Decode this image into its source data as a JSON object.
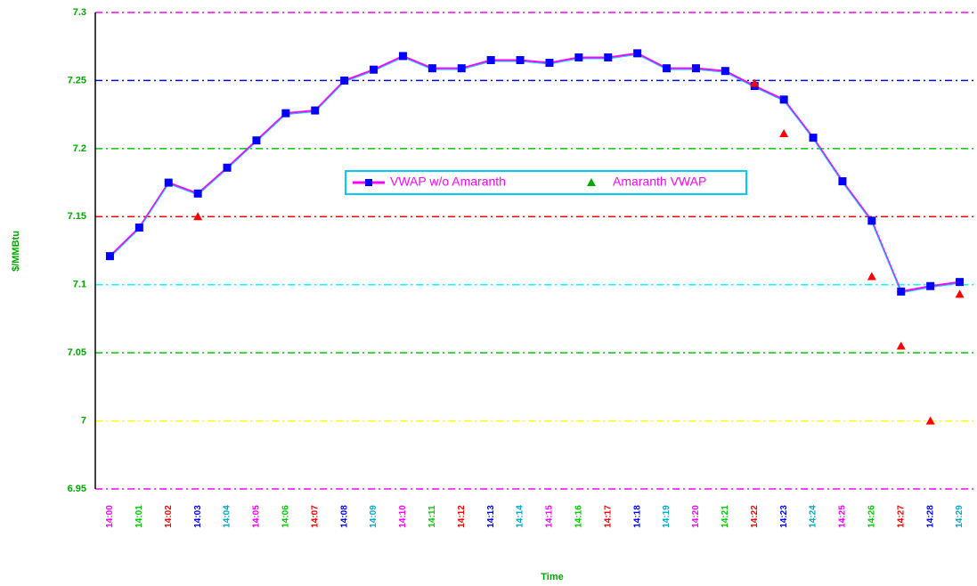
{
  "chart_data": {
    "type": "line",
    "x_label": "Time",
    "y_label": "$/MMBtu",
    "categories": [
      "14:00",
      "14:01",
      "14:02",
      "14:03",
      "14:04",
      "14:05",
      "14:06",
      "14:07",
      "14:08",
      "14:09",
      "14:10",
      "14:11",
      "14:12",
      "14:13",
      "14:14",
      "14:15",
      "14:16",
      "14:17",
      "14:18",
      "14:19",
      "14:20",
      "14:21",
      "14:22",
      "14:23",
      "14:24",
      "14:25",
      "14:26",
      "14:27",
      "14:28",
      "14:29"
    ],
    "series": [
      {
        "name": "VWAP w/o Amaranth",
        "color": "#ff00ff",
        "marker_color": "#0000ff",
        "marker": "square",
        "values": [
          7.121,
          7.142,
          7.175,
          7.167,
          7.186,
          7.206,
          7.226,
          7.228,
          7.25,
          7.258,
          7.268,
          7.259,
          7.259,
          7.265,
          7.265,
          7.263,
          7.267,
          7.267,
          7.27,
          7.259,
          7.259,
          7.257,
          7.246,
          7.236,
          7.208,
          7.176,
          7.147,
          7.095,
          7.099,
          7.102
        ]
      },
      {
        "name": "Amaranth VWAP",
        "color": "#ff0000",
        "marker_color": "#ff0000",
        "marker": "triangle",
        "line": false,
        "values": [
          null,
          null,
          null,
          7.15,
          null,
          null,
          null,
          null,
          null,
          null,
          null,
          null,
          null,
          null,
          null,
          null,
          null,
          null,
          null,
          null,
          null,
          null,
          7.248,
          7.211,
          null,
          null,
          7.106,
          7.055,
          7.0,
          7.093
        ]
      }
    ],
    "ylim": [
      6.95,
      7.3
    ],
    "yticks": [
      6.95,
      7,
      7.05,
      7.1,
      7.15,
      7.2,
      7.25,
      7.3
    ],
    "grid": true,
    "legend": "center"
  }
}
